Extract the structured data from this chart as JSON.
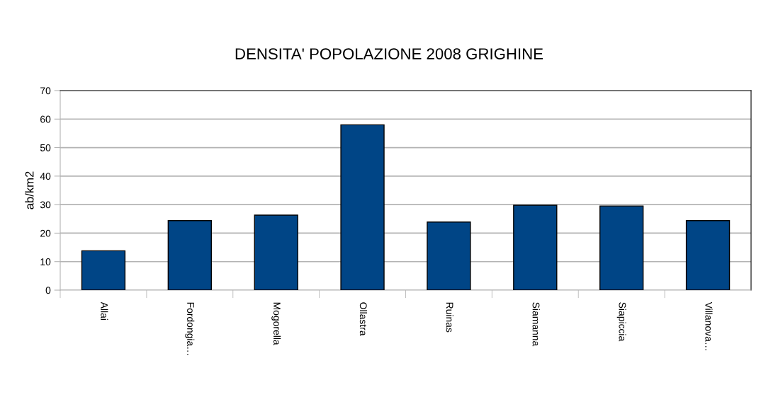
{
  "chart_data": {
    "type": "bar",
    "title": "DENSITA' POPOLAZIONE 2008 GRIGHINE",
    "ylabel": "ab/km2",
    "categories": [
      "Allai",
      "Fordongia…",
      "Mogorella",
      "Ollastra",
      "Ruinas",
      "Siamanna",
      "Siapiccia",
      "Villanova…"
    ],
    "values": [
      13.8,
      24.4,
      26.3,
      58.0,
      23.9,
      29.8,
      29.5,
      24.4
    ],
    "color": "#004586",
    "ylim": [
      0,
      70
    ],
    "yticks": [
      0,
      10,
      20,
      30,
      40,
      50,
      60,
      70
    ],
    "grid": "y"
  }
}
